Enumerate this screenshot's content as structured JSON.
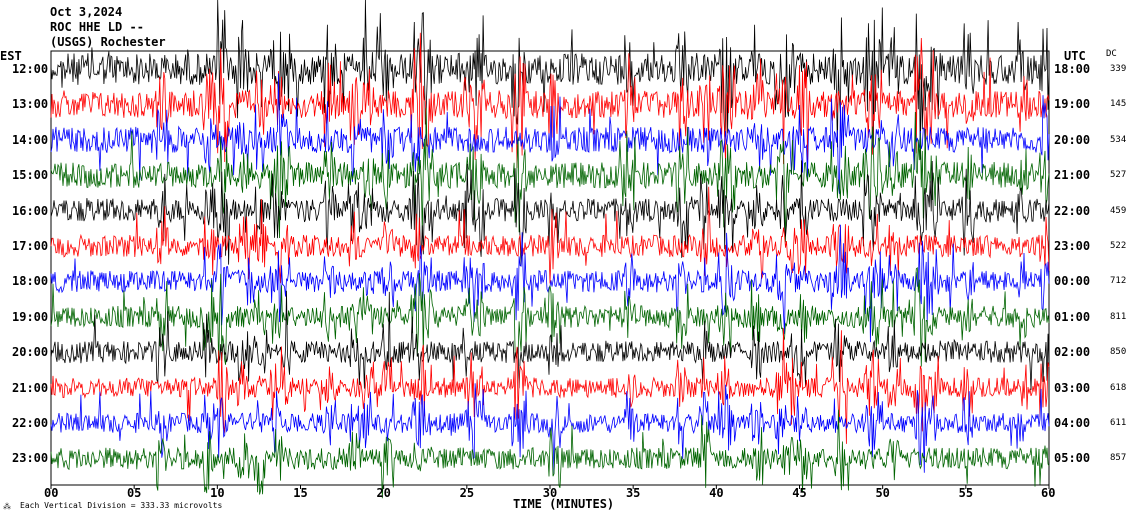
{
  "header": {
    "date": "Oct 3,2024",
    "station": "ROC HHE LD --",
    "location": "(USGS) Rochester"
  },
  "left_zone": "EST",
  "right_zone": "UTC",
  "dc_header": "DC",
  "footer_note": "Each Vertical Division = 333.33 microvolts",
  "colors": {
    "black": "#000000",
    "red": "#ff0000",
    "blue": "#0000ff",
    "green": "#006400"
  },
  "chart_data": {
    "type": "line",
    "title": "Oct 3,2024 ROC HHE LD -- (USGS) Rochester",
    "xlabel": "TIME (MINUTES)",
    "xlim": [
      0,
      60
    ],
    "x_ticks": [
      "00",
      "05",
      "10",
      "15",
      "20",
      "25",
      "30",
      "35",
      "40",
      "45",
      "50",
      "55",
      "60"
    ],
    "left_axis_label": "EST",
    "right_axis_label": "UTC",
    "rows": [
      {
        "est": "12:00",
        "utc": "18:00",
        "dc": "339",
        "color": "black",
        "amplitude": 1.6
      },
      {
        "est": "13:00",
        "utc": "19:00",
        "dc": "145",
        "color": "red",
        "amplitude": 1.4
      },
      {
        "est": "14:00",
        "utc": "20:00",
        "dc": "534",
        "color": "blue",
        "amplitude": 1.3
      },
      {
        "est": "15:00",
        "utc": "21:00",
        "dc": "527",
        "color": "green",
        "amplitude": 1.3
      },
      {
        "est": "16:00",
        "utc": "22:00",
        "dc": "459",
        "color": "black",
        "amplitude": 1.2
      },
      {
        "est": "17:00",
        "utc": "23:00",
        "dc": "522",
        "color": "red",
        "amplitude": 1.1
      },
      {
        "est": "18:00",
        "utc": "00:00",
        "dc": "712",
        "color": "blue",
        "amplitude": 1.1
      },
      {
        "est": "19:00",
        "utc": "01:00",
        "dc": "811",
        "color": "green",
        "amplitude": 1.1
      },
      {
        "est": "20:00",
        "utc": "02:00",
        "dc": "850",
        "color": "black",
        "amplitude": 1.1
      },
      {
        "est": "21:00",
        "utc": "03:00",
        "dc": "618",
        "color": "red",
        "amplitude": 1.0
      },
      {
        "est": "22:00",
        "utc": "04:00",
        "dc": "611",
        "color": "blue",
        "amplitude": 1.0
      },
      {
        "est": "23:00",
        "utc": "05:00",
        "dc": "857",
        "color": "green",
        "amplitude": 1.1
      }
    ],
    "grid": false
  }
}
